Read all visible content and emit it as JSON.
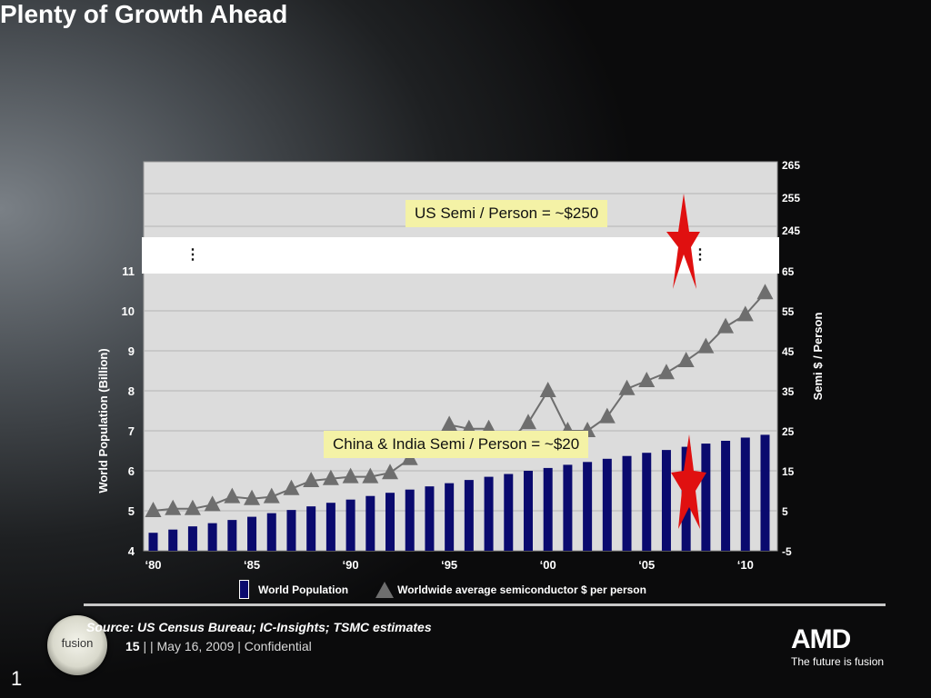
{
  "slide": {
    "title": "Plenty of Growth Ahead",
    "source": "Source: US Census Bureau; IC-Insights; TSMC estimates",
    "footer_page": "15",
    "footer_rest": "| | May 16, 2009 | Confidential",
    "page_number": "1",
    "fusion_logo_text": "fusion",
    "amd_logo": "AMD",
    "amd_tagline": "The future is fusion"
  },
  "callouts": {
    "us": "US Semi / Person = ~$250",
    "china_india": "China & India Semi / Person = ~$20"
  },
  "legend": {
    "population": "World Population",
    "semi": "Worldwide average semiconductor $ per person"
  },
  "colors": {
    "bar": "#0a0a6e",
    "line": "#6e6e6e",
    "plot_bg": "#dcdcdc",
    "callout_bg": "#f4f2a6",
    "star": "#e01010"
  },
  "chart_data": {
    "type": "bar+line",
    "x_years": [
      1980,
      1981,
      1982,
      1983,
      1984,
      1985,
      1986,
      1987,
      1988,
      1989,
      1990,
      1991,
      1992,
      1993,
      1994,
      1995,
      1996,
      1997,
      1998,
      1999,
      2000,
      2001,
      2002,
      2003,
      2004,
      2005,
      2006,
      2007,
      2008,
      2009,
      2010,
      2011
    ],
    "x_tick_labels": [
      "‘80",
      "‘85",
      "‘90",
      "‘95",
      "‘00",
      "‘05",
      "‘10"
    ],
    "y_left_label": "World Population (Billion)",
    "y_left_ticks": [
      "4",
      "5",
      "6",
      "7",
      "8",
      "9",
      "10",
      "11"
    ],
    "y_left_range": [
      4,
      11
    ],
    "y_right_label": "Semi $ / Person",
    "y_right_ticks": [
      "-5",
      "5",
      "15",
      "25",
      "35",
      "45",
      "55",
      "65",
      "245",
      "255",
      "265"
    ],
    "y_right_note": "axis break between 65 and 245",
    "series": [
      {
        "name": "World Population",
        "type": "bar",
        "values": [
          4.45,
          4.53,
          4.61,
          4.69,
          4.77,
          4.85,
          4.94,
          5.02,
          5.11,
          5.2,
          5.28,
          5.37,
          5.45,
          5.53,
          5.61,
          5.69,
          5.77,
          5.85,
          5.92,
          6.0,
          6.07,
          6.15,
          6.22,
          6.3,
          6.37,
          6.45,
          6.52,
          6.6,
          6.68,
          6.75,
          6.83,
          6.9
        ]
      },
      {
        "name": "Worldwide average semiconductor $ per person",
        "type": "line",
        "values": [
          5,
          5.5,
          5.5,
          6.5,
          8.5,
          8,
          8.5,
          10.5,
          12.5,
          13,
          13.5,
          13.5,
          14.5,
          18,
          22,
          26.5,
          25.5,
          25.5,
          22.5,
          27,
          35,
          25,
          25,
          28.5,
          35.5,
          37.5,
          39.5,
          42.5,
          46,
          51,
          54,
          59.5
        ]
      }
    ],
    "legend_position": "bottom"
  }
}
